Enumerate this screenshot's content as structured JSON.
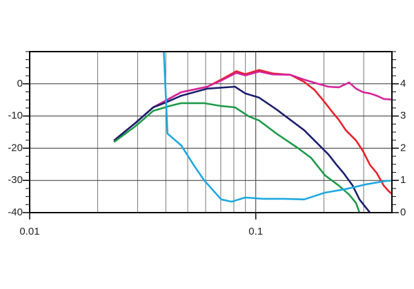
{
  "chart_data": {
    "type": "line",
    "xscale": "log",
    "grid": true,
    "xlim": [
      0.01,
      0.4
    ],
    "xticks": [
      0.01,
      0.1
    ],
    "ylim": [
      -40,
      10
    ],
    "yticks": [
      -40,
      -30,
      -20,
      -10,
      0
    ],
    "y2lim": [
      0,
      5
    ],
    "y2ticks": [
      0,
      1,
      2,
      3,
      4
    ],
    "series": [
      {
        "color": "#e8202a",
        "x": [
          0.0236,
          0.0292,
          0.0352,
          0.04,
          0.0468,
          0.0611,
          0.0703,
          0.082,
          0.0899,
          0.1035,
          0.1192,
          0.1422,
          0.1637,
          0.182,
          0.2022,
          0.217,
          0.2328,
          0.25,
          0.2775,
          0.2979,
          0.3199,
          0.3428,
          0.3681,
          0.3865,
          0.4
        ],
        "values": [
          -17.6,
          -12.3,
          -7.3,
          -5.2,
          -2.6,
          -0.9,
          1.3,
          3.9,
          3.0,
          4.3,
          3.2,
          2.8,
          0.6,
          -1.9,
          -5.8,
          -8.6,
          -11.2,
          -14.4,
          -17.6,
          -20.9,
          -25.2,
          -27.7,
          -31.6,
          -33.3,
          -34.2
        ]
      },
      {
        "color": "#d6239a",
        "x": [
          0.0236,
          0.0292,
          0.0352,
          0.04,
          0.0468,
          0.0611,
          0.0703,
          0.082,
          0.0899,
          0.1035,
          0.1192,
          0.1422,
          0.1637,
          0.1885,
          0.2094,
          0.2328,
          0.2588,
          0.2775,
          0.2979,
          0.3199,
          0.3428,
          0.3681,
          0.4
        ],
        "values": [
          -17.6,
          -12.3,
          -7.3,
          -5.2,
          -2.6,
          -0.9,
          1.0,
          3.4,
          2.6,
          3.8,
          2.9,
          2.8,
          1.3,
          0,
          -0.9,
          -1.1,
          0.4,
          -1.5,
          -2.6,
          -3.0,
          -3.7,
          -4.7,
          -4.9
        ]
      },
      {
        "color": "#1a1f6e",
        "x": [
          0.0236,
          0.0292,
          0.0352,
          0.04,
          0.0468,
          0.0611,
          0.0809,
          0.0899,
          0.1035,
          0.1236,
          0.1422,
          0.1637,
          0.1885,
          0.2094,
          0.2278,
          0.2443,
          0.2681,
          0.2876,
          0.3041,
          0.3199
        ],
        "values": [
          -17.6,
          -12.3,
          -7.3,
          -5.8,
          -3.7,
          -1.5,
          -0.9,
          -3.0,
          -4.3,
          -8.0,
          -11.2,
          -14.4,
          -18.7,
          -21.9,
          -25.2,
          -27.7,
          -31.6,
          -35.9,
          -38.1,
          -40.0
        ]
      },
      {
        "color": "#1d9a4a",
        "x": [
          0.0236,
          0.0292,
          0.0352,
          0.0415,
          0.0468,
          0.059,
          0.0703,
          0.0809,
          0.0931,
          0.1035,
          0.1236,
          0.1525,
          0.1757,
          0.2022,
          0.2328,
          0.2588,
          0.2775,
          0.2876
        ],
        "values": [
          -18.1,
          -13.3,
          -8.4,
          -6.9,
          -6.0,
          -6.0,
          -6.9,
          -7.3,
          -10.1,
          -11.4,
          -15.5,
          -19.8,
          -23.0,
          -28.4,
          -31.6,
          -34.4,
          -37.0,
          -40.0
        ]
      },
      {
        "color": "#1fa8e0",
        "x": [
          0.0392,
          0.0407,
          0.0468,
          0.0531,
          0.059,
          0.0703,
          0.0782,
          0.0899,
          0.1074,
          0.1325,
          0.1637,
          0.2022,
          0.25,
          0.3084,
          0.3811,
          0.4
        ],
        "values": [
          10,
          -15.5,
          -19.1,
          -25.2,
          -29.9,
          -35.9,
          -36.6,
          -35.3,
          -35.7,
          -35.7,
          -35.9,
          -33.8,
          -32.7,
          -31.2,
          -30.1,
          -30.1
        ]
      }
    ]
  }
}
